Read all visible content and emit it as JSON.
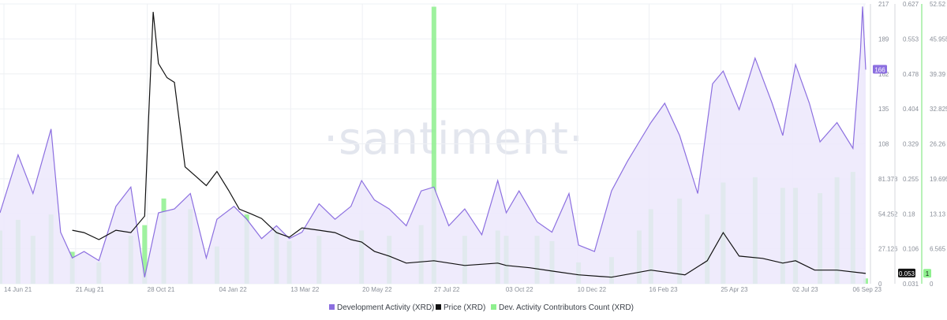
{
  "watermark": "·santiment·",
  "colors": {
    "dev_activity": "#8c6fe0",
    "dev_activity_fill": "#ece7fb",
    "price": "#111111",
    "contributors": "#8ef08e",
    "contributors_line": "#6fe46f",
    "grid": "#eef0f4"
  },
  "chart_data": {
    "type": "line",
    "legend_position": "bottom-center",
    "grid": true,
    "x_ticks": [
      "14 Jun 21",
      "21 Aug 21",
      "28 Oct 21",
      "04 Jan 22",
      "13 Mar 22",
      "20 May 22",
      "27 Jul 22",
      "03 Oct 22",
      "10 Dec 22",
      "16 Feb 23",
      "25 Apr 23",
      "02 Jul 23",
      "06 Sep 23"
    ],
    "x_range": [
      "2021-06-14",
      "2023-09-06"
    ],
    "axes": {
      "dev_activity": {
        "ticks": [
          "217",
          "189",
          "162",
          "135",
          "108",
          "81.378",
          "54.252",
          "27.126",
          "0"
        ],
        "ylim": [
          0,
          217
        ]
      },
      "price": {
        "ticks": [
          "0.627",
          "0.553",
          "0.478",
          "0.404",
          "0.329",
          "0.255",
          "0.18",
          "0.106",
          "0.031"
        ],
        "ylim": [
          0.031,
          0.627
        ]
      },
      "contributors": {
        "ticks": [
          "52.52",
          "45.955",
          "39.39",
          "32.825",
          "26.26",
          "19.695",
          "13.13",
          "6.565",
          "0"
        ],
        "ylim": [
          0,
          52.52
        ]
      }
    },
    "series": [
      {
        "name": "Development Activity (XRD)",
        "axis": "dev_activity",
        "last_value_label": "166",
        "x": [
          "2021-06-14",
          "2021-07-01",
          "2021-07-15",
          "2021-08-01",
          "2021-08-10",
          "2021-08-21",
          "2021-09-01",
          "2021-09-15",
          "2021-10-01",
          "2021-10-15",
          "2021-10-28",
          "2021-11-10",
          "2021-11-25",
          "2021-12-10",
          "2021-12-25",
          "2022-01-04",
          "2022-01-20",
          "2022-02-01",
          "2022-02-15",
          "2022-03-01",
          "2022-03-13",
          "2022-03-25",
          "2022-04-10",
          "2022-04-25",
          "2022-05-10",
          "2022-05-20",
          "2022-06-01",
          "2022-06-15",
          "2022-07-01",
          "2022-07-15",
          "2022-07-27",
          "2022-08-10",
          "2022-08-25",
          "2022-09-10",
          "2022-09-25",
          "2022-10-03",
          "2022-10-15",
          "2022-11-01",
          "2022-11-15",
          "2022-12-01",
          "2022-12-10",
          "2022-12-25",
          "2023-01-10",
          "2023-01-25",
          "2023-02-05",
          "2023-02-16",
          "2023-03-01",
          "2023-03-15",
          "2023-04-01",
          "2023-04-15",
          "2023-04-25",
          "2023-05-10",
          "2023-05-25",
          "2023-06-10",
          "2023-06-20",
          "2023-07-02",
          "2023-07-15",
          "2023-07-25",
          "2023-08-10",
          "2023-08-25",
          "2023-09-01",
          "2023-09-03",
          "2023-09-06"
        ],
        "values": [
          55,
          100,
          70,
          120,
          40,
          20,
          25,
          18,
          60,
          75,
          5,
          55,
          58,
          70,
          20,
          50,
          60,
          50,
          35,
          45,
          35,
          40,
          62,
          50,
          60,
          80,
          65,
          58,
          45,
          72,
          75,
          45,
          58,
          38,
          80,
          55,
          72,
          48,
          40,
          70,
          30,
          25,
          72,
          95,
          110,
          125,
          140,
          115,
          70,
          155,
          165,
          135,
          175,
          140,
          115,
          170,
          140,
          110,
          125,
          105,
          180,
          215,
          166
        ]
      },
      {
        "name": "Price (XRD)",
        "axis": "price",
        "last_value_label": "0.053",
        "x": [
          "2021-08-21",
          "2021-09-01",
          "2021-09-15",
          "2021-10-01",
          "2021-10-15",
          "2021-10-28",
          "2021-11-01",
          "2021-11-05",
          "2021-11-10",
          "2021-11-18",
          "2021-11-25",
          "2021-12-05",
          "2021-12-15",
          "2021-12-25",
          "2022-01-04",
          "2022-01-15",
          "2022-01-25",
          "2022-02-05",
          "2022-02-15",
          "2022-03-01",
          "2022-03-13",
          "2022-03-25",
          "2022-04-10",
          "2022-04-25",
          "2022-05-10",
          "2022-05-20",
          "2022-06-01",
          "2022-06-15",
          "2022-07-01",
          "2022-07-27",
          "2022-08-25",
          "2022-09-25",
          "2022-10-03",
          "2022-10-25",
          "2022-11-15",
          "2022-12-10",
          "2023-01-10",
          "2023-02-16",
          "2023-03-20",
          "2023-04-10",
          "2023-04-25",
          "2023-05-10",
          "2023-06-01",
          "2023-06-20",
          "2023-07-02",
          "2023-07-20",
          "2023-08-10",
          "2023-09-06"
        ],
        "values": [
          0.145,
          0.14,
          0.125,
          0.145,
          0.14,
          0.175,
          0.4,
          0.61,
          0.5,
          0.47,
          0.46,
          0.28,
          0.26,
          0.24,
          0.27,
          0.23,
          0.19,
          0.18,
          0.17,
          0.14,
          0.13,
          0.15,
          0.145,
          0.14,
          0.125,
          0.12,
          0.1,
          0.09,
          0.075,
          0.08,
          0.07,
          0.075,
          0.07,
          0.065,
          0.058,
          0.05,
          0.045,
          0.06,
          0.05,
          0.08,
          0.14,
          0.09,
          0.085,
          0.075,
          0.08,
          0.06,
          0.06,
          0.053
        ]
      },
      {
        "name": "Dev. Activity Contributors Count (XRD)",
        "axis": "contributors",
        "last_value_label": "1",
        "type": "bar",
        "x": [
          "2021-06-14",
          "2021-07-01",
          "2021-07-15",
          "2021-08-01",
          "2021-08-21",
          "2021-09-15",
          "2021-10-15",
          "2021-10-28",
          "2021-11-15",
          "2021-12-10",
          "2022-01-04",
          "2022-02-01",
          "2022-03-01",
          "2022-03-13",
          "2022-04-10",
          "2022-05-20",
          "2022-06-15",
          "2022-07-15",
          "2022-07-27",
          "2022-08-25",
          "2022-09-25",
          "2022-10-03",
          "2022-11-01",
          "2022-11-15",
          "2022-12-10",
          "2023-01-10",
          "2023-02-05",
          "2023-02-16",
          "2023-03-15",
          "2023-04-10",
          "2023-04-25",
          "2023-05-25",
          "2023-06-20",
          "2023-07-02",
          "2023-07-25",
          "2023-08-10",
          "2023-08-25",
          "2023-09-06"
        ],
        "values": [
          10,
          12,
          9,
          13,
          6,
          4,
          9,
          11,
          16,
          14,
          7,
          13,
          10,
          8,
          9,
          10,
          9,
          11,
          52,
          9,
          10,
          9,
          9,
          8,
          4,
          5,
          10,
          14,
          16,
          13,
          19,
          20,
          18,
          18,
          17,
          20,
          21,
          1
        ]
      }
    ]
  }
}
